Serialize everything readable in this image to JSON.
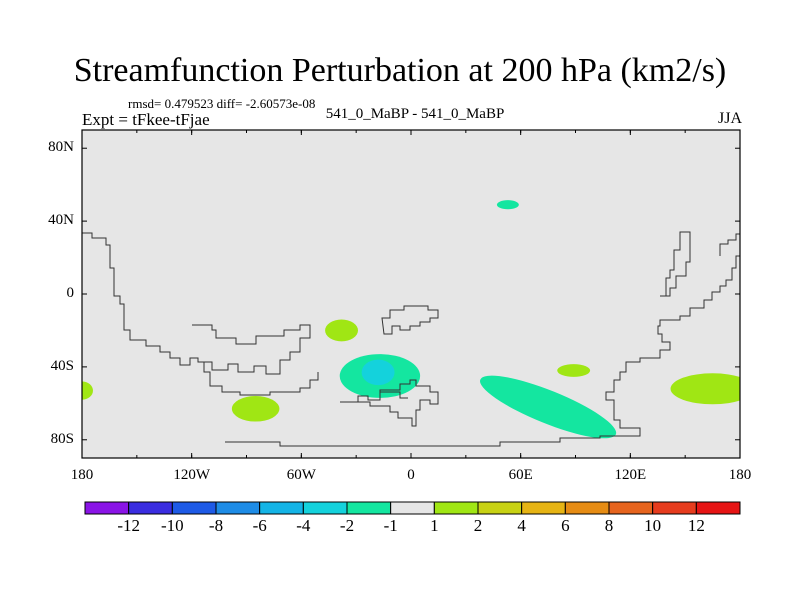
{
  "chart_data": {
    "type": "heatmap",
    "title": "Streamfunction Perturbation at 200 hPa (km2/s)",
    "stats_line": "rmsd= 0.479523 diff= -2.60573e-08",
    "left_label": "Expt = tFkee-tFjae",
    "center_label": "541_0_MaBP - 541_0_MaBP",
    "right_label": "JJA",
    "xlim": [
      -180,
      180
    ],
    "ylim": [
      -90,
      90
    ],
    "x_ticks": [
      {
        "value": -180,
        "label": "180"
      },
      {
        "value": -120,
        "label": "120W"
      },
      {
        "value": -60,
        "label": "60W"
      },
      {
        "value": 0,
        "label": "0"
      },
      {
        "value": 60,
        "label": "60E"
      },
      {
        "value": 120,
        "label": "120E"
      },
      {
        "value": 180,
        "label": "180"
      }
    ],
    "y_ticks": [
      {
        "value": 80,
        "label": "80N"
      },
      {
        "value": 40,
        "label": "40N"
      },
      {
        "value": 0,
        "label": "0"
      },
      {
        "value": -40,
        "label": "40S"
      },
      {
        "value": -80,
        "label": "80S"
      }
    ],
    "background_color": "#e6e6e6",
    "contour_levels": [
      -12,
      -10,
      -8,
      -6,
      -4,
      -2,
      -1,
      1,
      2,
      4,
      6,
      8,
      10,
      12
    ],
    "colorbar_colors": [
      "#8a14e6",
      "#3a2de0",
      "#1e5ae6",
      "#1e8ce6",
      "#14b4e6",
      "#14d2dc",
      "#14e6a0",
      "#e6e6e6",
      "#a0e614",
      "#c8d214",
      "#e6b414",
      "#e68c14",
      "#e6641e",
      "#e63c1e",
      "#e61414"
    ],
    "anomalies": [
      {
        "lon": 53,
        "lat": 49,
        "dlon": 6,
        "dlat": 2.5,
        "level": "-2 to -1"
      },
      {
        "lon": -38,
        "lat": -20,
        "dlon": 9,
        "dlat": 6,
        "level": "1 to 2"
      },
      {
        "lon": -17,
        "lat": -45,
        "dlon": 22,
        "dlat": 12,
        "level": "-2 to -1"
      },
      {
        "lon": -18,
        "lat": -43,
        "dlon": 9,
        "dlat": 7,
        "level": "-4 to -2"
      },
      {
        "lon": 89,
        "lat": -42,
        "dlon": 9,
        "dlat": 3.5,
        "level": "1 to 2"
      },
      {
        "lon": 165,
        "lat": -52,
        "dlon": 23,
        "dlat": 8.5,
        "level": "1 to 2"
      },
      {
        "lon": -180,
        "lat": -53,
        "dlon": 6,
        "dlat": 5,
        "level": "1 to 2"
      },
      {
        "lon": -85,
        "lat": -63,
        "dlon": 13,
        "dlat": 7,
        "level": "1 to 2"
      },
      {
        "lon": 75,
        "lat": -62,
        "dlon": 40,
        "dlat": 9,
        "level": "-2 to -1",
        "rotation": 22
      }
    ]
  }
}
